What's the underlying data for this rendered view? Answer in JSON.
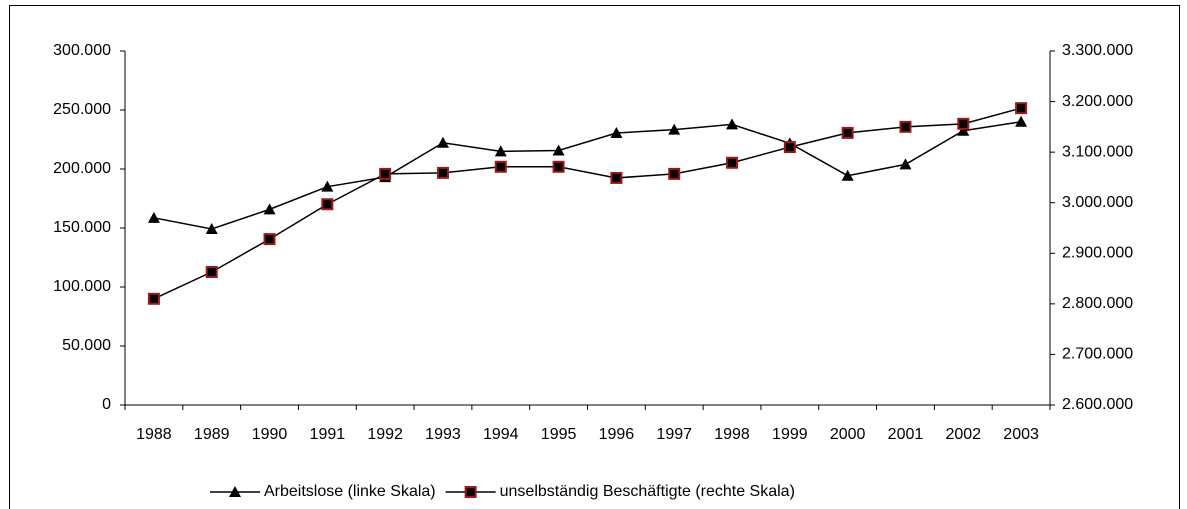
{
  "chart_data": {
    "type": "line",
    "categories": [
      "1988",
      "1989",
      "1990",
      "1991",
      "1992",
      "1993",
      "1994",
      "1995",
      "1996",
      "1997",
      "1998",
      "1999",
      "2000",
      "2001",
      "2002",
      "2003"
    ],
    "series": [
      {
        "name": "Arbeitslose (linke Skala)",
        "color": "#000000",
        "marker": "triangle",
        "axis": "y",
        "values": [
          158631,
          149177,
          165795,
          185029,
          193098,
          222265,
          214941,
          215716,
          230507,
          233348,
          237794,
          221743,
          194314,
          203883,
          232418,
          240079
        ]
      },
      {
        "name": "unselbständig Beschäftigte (rechte Skala)",
        "color": "#000000",
        "marker": "square",
        "marker_edge": "#a01818",
        "axis": "y2",
        "values": [
          2810000,
          2863000,
          2928000,
          2997000,
          3057000,
          3059000,
          3071000,
          3071000,
          3049000,
          3057000,
          3079000,
          3110000,
          3138000,
          3150000,
          3156000,
          3187000
        ]
      }
    ],
    "ylim": [
      0,
      300000
    ],
    "yticks": [
      0,
      {
        "value": 50000,
        "label": "50.000"
      },
      {
        "value": 100000,
        "label": "100.000"
      },
      {
        "value": 150000,
        "label": "150.000"
      },
      {
        "value": 200000,
        "label": "200.000"
      },
      {
        "value": 250000,
        "label": "250.000"
      },
      {
        "value": 300000,
        "label": "300.000"
      }
    ],
    "y2lim": [
      2600000,
      3300000
    ],
    "y2ticks": [
      {
        "value": 2600000,
        "label": "2.600.000"
      },
      {
        "value": 2700000,
        "label": "2.700.000"
      },
      {
        "value": 2800000,
        "label": "2.800.000"
      },
      {
        "value": 2900000,
        "label": "2.900.000"
      },
      {
        "value": 3000000,
        "label": "3.000.000"
      },
      {
        "value": 3100000,
        "label": "3.100.000"
      },
      {
        "value": 3200000,
        "label": "3.200.000"
      },
      {
        "value": 3300000,
        "label": "3.300.000"
      }
    ],
    "grid": false,
    "legend": "bottom"
  }
}
